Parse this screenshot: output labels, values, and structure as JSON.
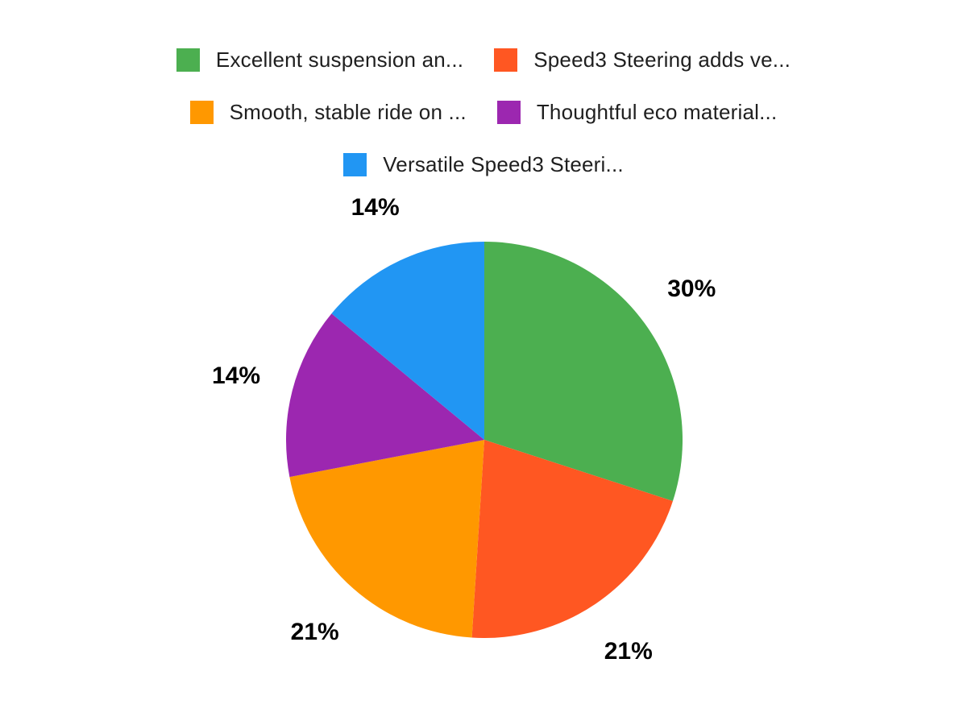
{
  "chart_data": {
    "type": "pie",
    "title": "",
    "labels": [
      "Excellent suspension an...",
      "Speed3 Steering adds ve...",
      "Smooth, stable ride on ...",
      "Thoughtful eco material...",
      "Versatile Speed3 Steeri..."
    ],
    "values": [
      30,
      21,
      21,
      14,
      14
    ],
    "data_labels": [
      "30%",
      "21%",
      "21%",
      "14%",
      "14%"
    ],
    "colors": [
      "#4CAF50",
      "#FF5722",
      "#FF9800",
      "#9C27B0",
      "#2196F3"
    ],
    "direction": "clockwise",
    "start_angle_deg": 0,
    "legend_position": "top",
    "data_label_position": "outside",
    "background_color": "#ffffff",
    "label_color": "#000000"
  },
  "legend": {
    "rows": [
      [
        0,
        1
      ],
      [
        2,
        3
      ],
      [
        4
      ]
    ]
  }
}
